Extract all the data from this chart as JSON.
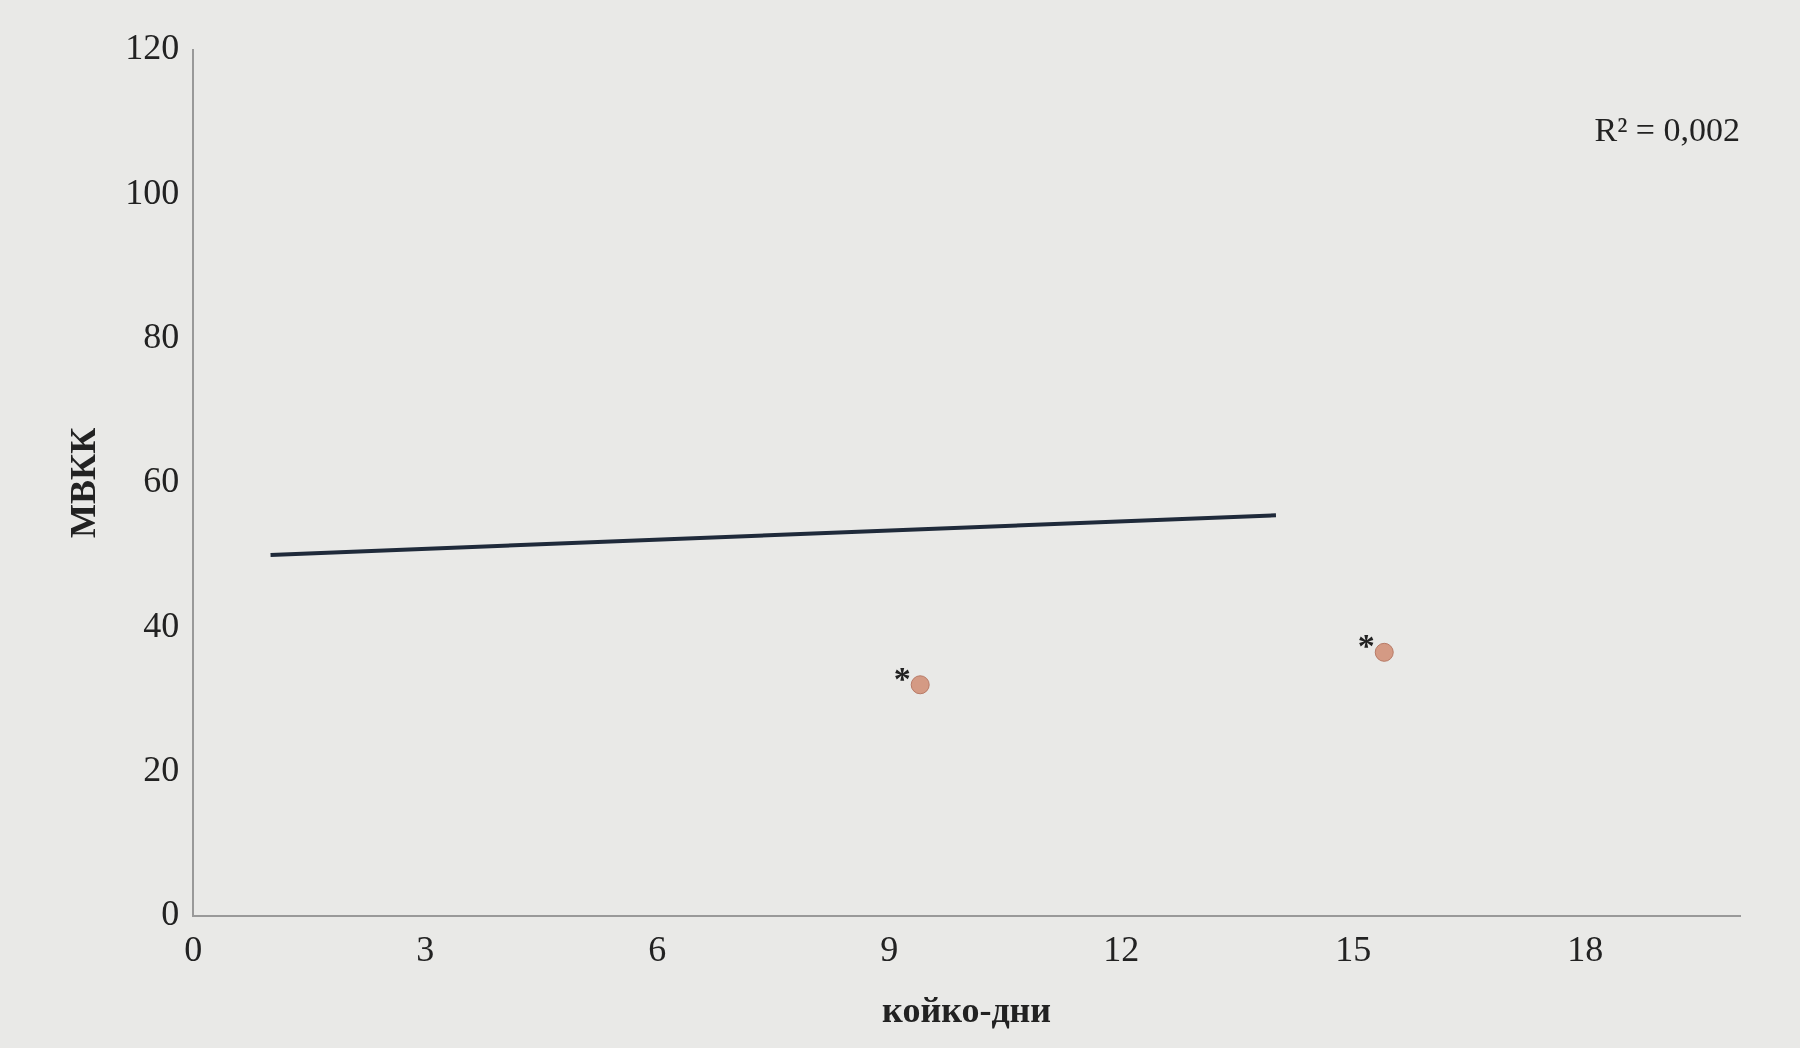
{
  "chart_data": {
    "type": "scatter",
    "xlabel": "койко-дни",
    "ylabel": "МВКК",
    "xlim": [
      0,
      20
    ],
    "xticks": [
      0,
      3,
      6,
      9,
      12,
      15,
      18
    ],
    "ylim": [
      0,
      120
    ],
    "yticks": [
      0,
      20,
      40,
      60,
      80,
      100,
      120
    ],
    "grid": false,
    "legend": false,
    "marker": "circle",
    "series": [
      {
        "color": "#d49a84",
        "x": [
          9.4,
          15.4
        ],
        "values": [
          32,
          36.5
        ]
      },
      {
        "type": "line",
        "color": "#1f2a3a",
        "x": [
          1,
          14
        ],
        "values": [
          50,
          55.5
        ],
        "marker": "none"
      }
    ],
    "annotations": [
      "R² = 0,002",
      {
        "text": "*",
        "x": 9.4,
        "y": 32
      },
      {
        "text": "*",
        "x": 15.4,
        "y": 36.5
      }
    ]
  }
}
